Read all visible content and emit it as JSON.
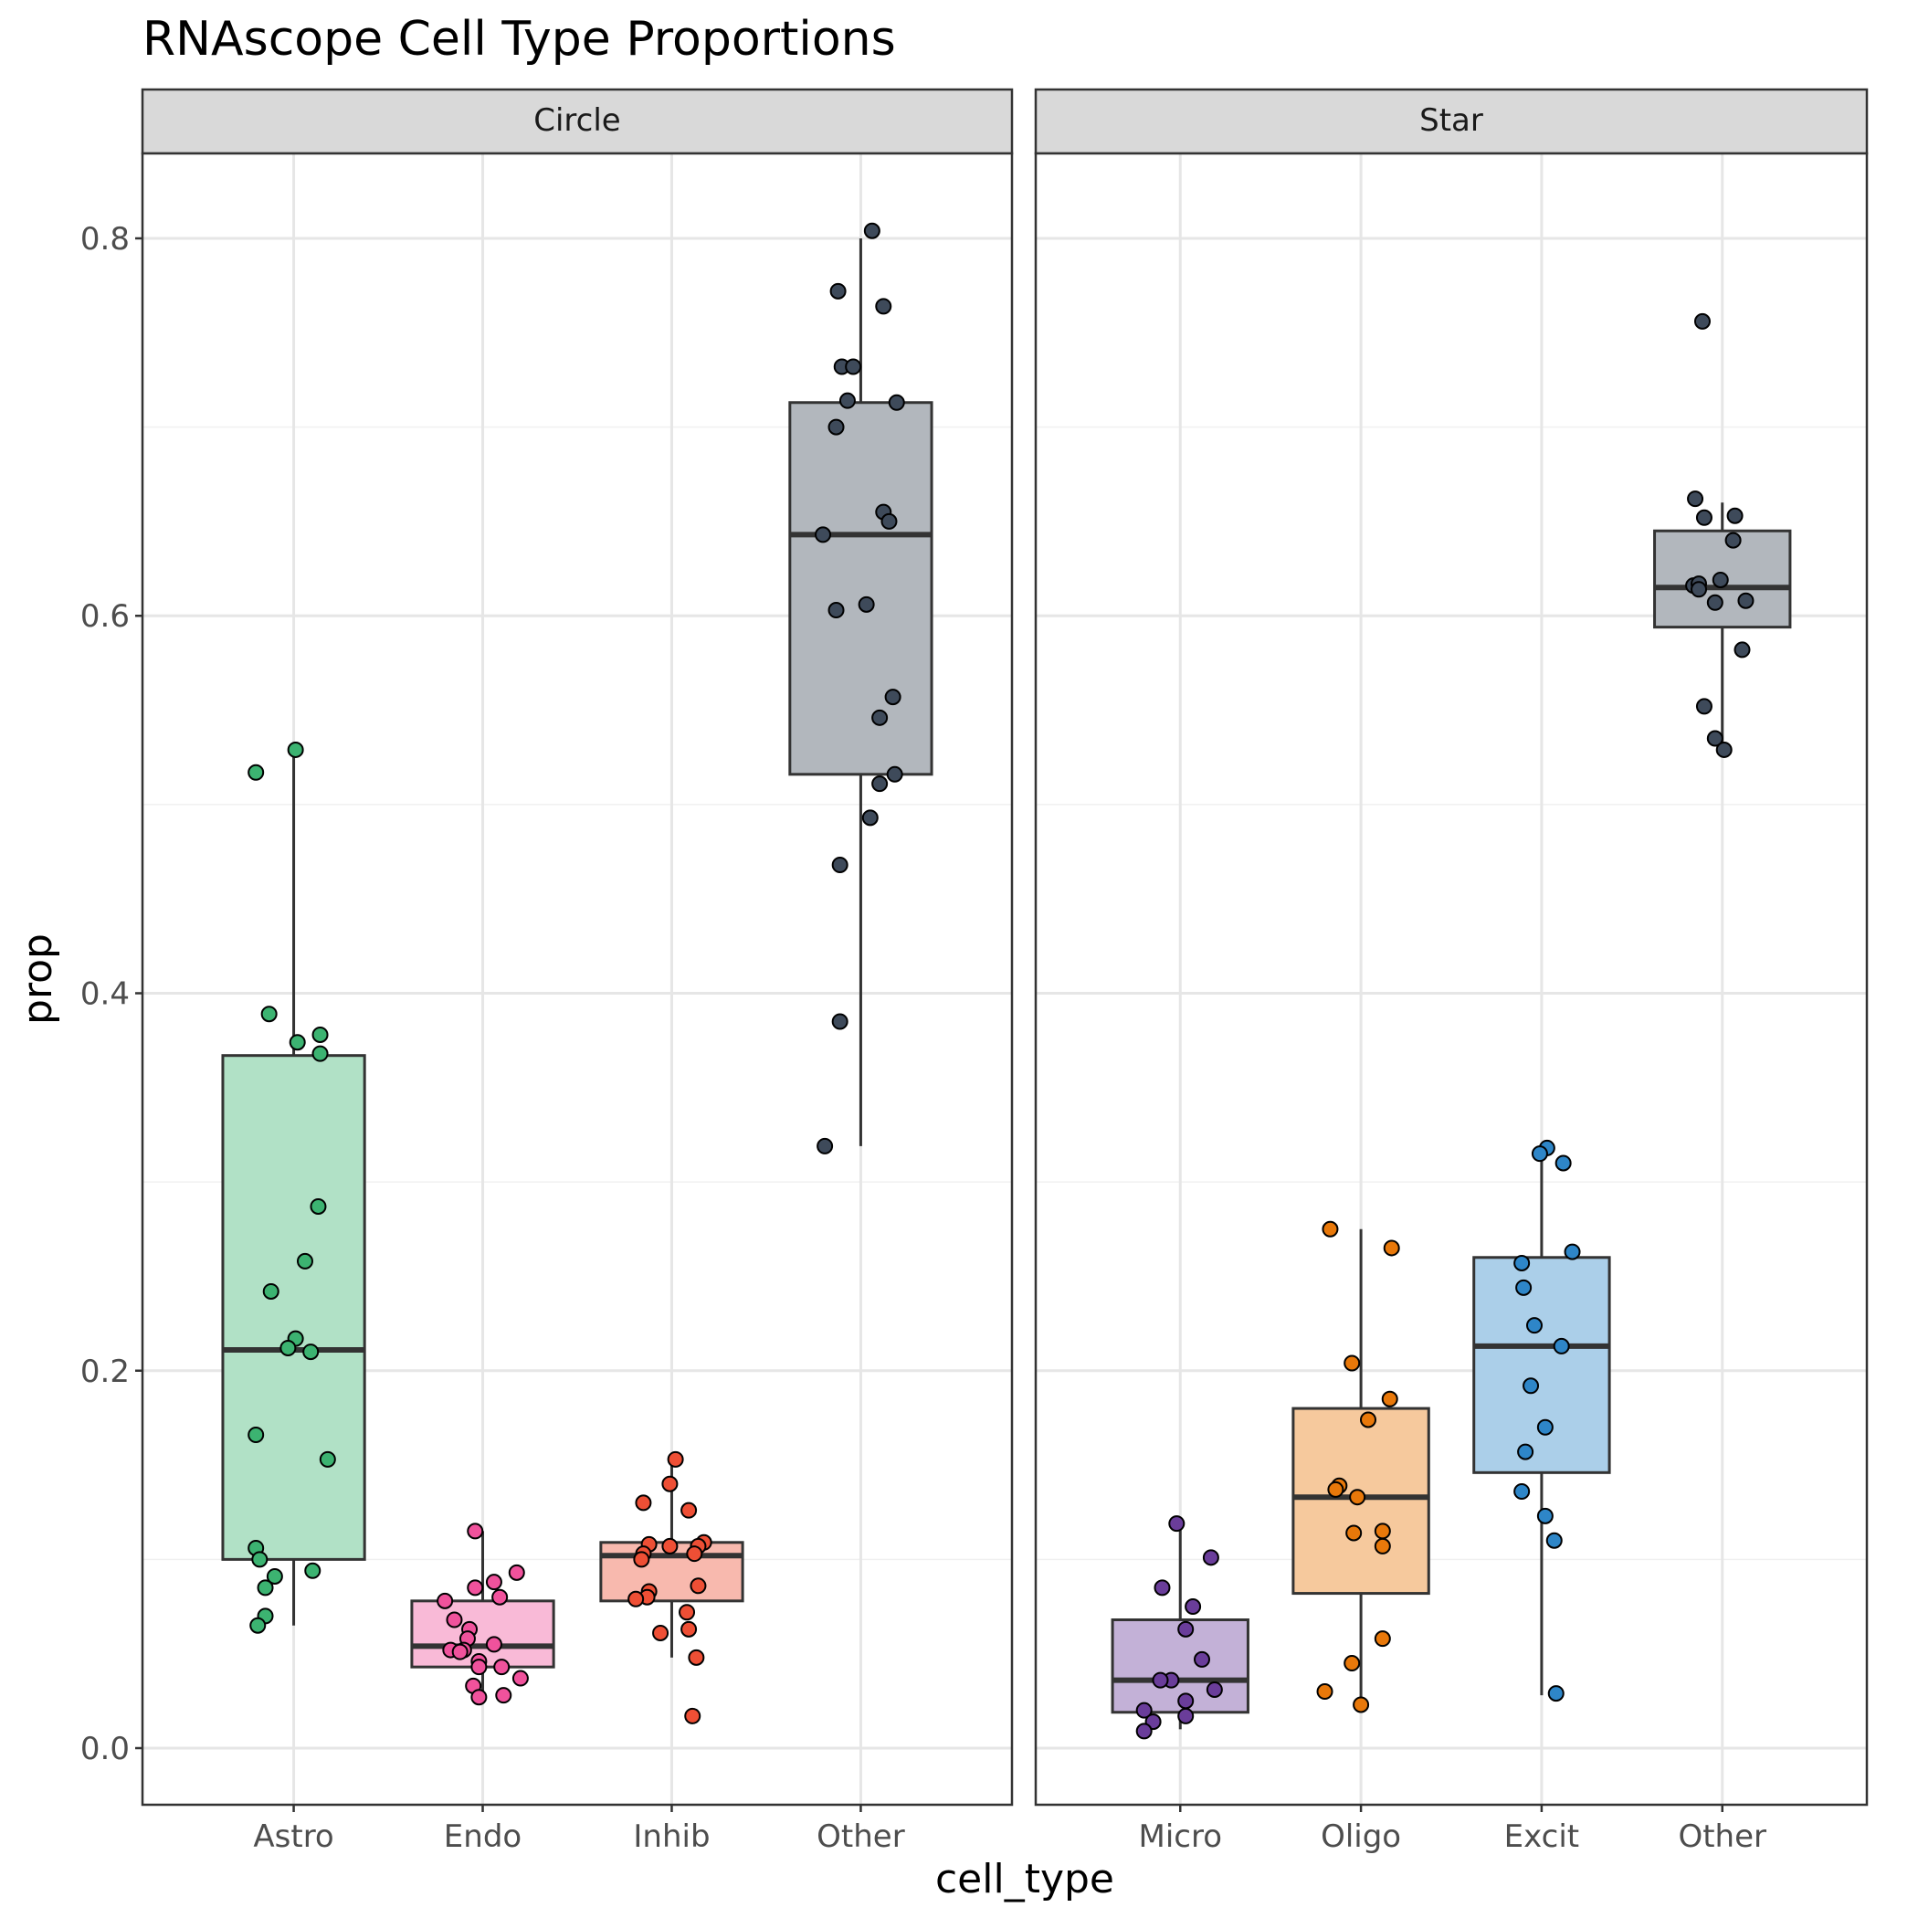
{
  "chart_data": {
    "type": "boxplot",
    "title": "RNAscope Cell Type Proportions",
    "xlabel": "cell_type",
    "ylabel": "prop",
    "ylim": [
      -0.03,
      0.845
    ],
    "yticks": [
      0.0,
      0.2,
      0.4,
      0.6,
      0.8
    ],
    "ytick_labels": [
      "0.0",
      "0.2",
      "0.4",
      "0.6",
      "0.8"
    ],
    "grid": true,
    "facets": [
      {
        "name": "Circle",
        "categories": [
          {
            "label": "Astro",
            "color": "#3cb371",
            "box": {
              "whisker_low": 0.065,
              "q1": 0.1,
              "median": 0.211,
              "q3": 0.367,
              "whisker_high": 0.529
            },
            "points": [
              [
                -0.2,
                0.517
              ],
              [
                0.01,
                0.529
              ],
              [
                -0.13,
                0.389
              ],
              [
                0.02,
                0.374
              ],
              [
                0.14,
                0.378
              ],
              [
                0.14,
                0.368
              ],
              [
                0.13,
                0.287
              ],
              [
                0.06,
                0.258
              ],
              [
                -0.12,
                0.242
              ],
              [
                0.01,
                0.217
              ],
              [
                -0.03,
                0.212
              ],
              [
                0.09,
                0.21
              ],
              [
                -0.2,
                0.166
              ],
              [
                0.18,
                0.153
              ],
              [
                -0.2,
                0.106
              ],
              [
                -0.18,
                0.1
              ],
              [
                -0.1,
                0.091
              ],
              [
                -0.15,
                0.085
              ],
              [
                -0.15,
                0.07
              ],
              [
                -0.19,
                0.065
              ],
              [
                0.1,
                0.094
              ]
            ]
          },
          {
            "label": "Endo",
            "color": "#f0529c",
            "box": {
              "whisker_low": 0.027,
              "q1": 0.043,
              "median": 0.054,
              "q3": 0.078,
              "whisker_high": 0.115
            },
            "points": [
              [
                -0.04,
                0.115
              ],
              [
                0.18,
                0.093
              ],
              [
                0.06,
                0.088
              ],
              [
                -0.04,
                0.085
              ],
              [
                0.09,
                0.08
              ],
              [
                -0.2,
                0.078
              ],
              [
                -0.15,
                0.068
              ],
              [
                -0.07,
                0.063
              ],
              [
                -0.08,
                0.058
              ],
              [
                0.06,
                0.055
              ],
              [
                -0.1,
                0.052
              ],
              [
                -0.17,
                0.052
              ],
              [
                -0.12,
                0.051
              ],
              [
                -0.02,
                0.046
              ],
              [
                0.1,
                0.043
              ],
              [
                -0.02,
                0.043
              ],
              [
                0.2,
                0.037
              ],
              [
                -0.05,
                0.033
              ],
              [
                0.11,
                0.028
              ],
              [
                -0.02,
                0.027
              ]
            ]
          },
          {
            "label": "Inhib",
            "color": "#ee4f35",
            "box": {
              "whisker_low": 0.048,
              "q1": 0.078,
              "median": 0.102,
              "q3": 0.109,
              "whisker_high": 0.153
            },
            "points": [
              [
                0.02,
                0.153
              ],
              [
                -0.01,
                0.14
              ],
              [
                -0.15,
                0.13
              ],
              [
                0.09,
                0.126
              ],
              [
                0.17,
                0.109
              ],
              [
                -0.12,
                0.108
              ],
              [
                -0.01,
                0.107
              ],
              [
                0.14,
                0.107
              ],
              [
                -0.15,
                0.103
              ],
              [
                0.12,
                0.103
              ],
              [
                -0.16,
                0.1
              ],
              [
                0.14,
                0.086
              ],
              [
                -0.12,
                0.083
              ],
              [
                -0.13,
                0.08
              ],
              [
                -0.19,
                0.079
              ],
              [
                0.08,
                0.072
              ],
              [
                0.09,
                0.063
              ],
              [
                -0.06,
                0.061
              ],
              [
                0.13,
                0.048
              ],
              [
                0.11,
                0.017
              ]
            ]
          },
          {
            "label": "Other",
            "color": "#3e4a5a",
            "box": {
              "whisker_low": 0.319,
              "q1": 0.516,
              "median": 0.643,
              "q3": 0.713,
              "whisker_high": 0.8
            },
            "points": [
              [
                0.06,
                0.804
              ],
              [
                -0.12,
                0.772
              ],
              [
                0.12,
                0.764
              ],
              [
                -0.1,
                0.732
              ],
              [
                -0.04,
                0.732
              ],
              [
                -0.07,
                0.714
              ],
              [
                0.19,
                0.713
              ],
              [
                -0.13,
                0.7
              ],
              [
                0.12,
                0.655
              ],
              [
                0.15,
                0.65
              ],
              [
                -0.2,
                0.643
              ],
              [
                -0.13,
                0.603
              ],
              [
                0.03,
                0.606
              ],
              [
                0.17,
                0.557
              ],
              [
                0.1,
                0.546
              ],
              [
                0.18,
                0.516
              ],
              [
                0.1,
                0.511
              ],
              [
                0.05,
                0.493
              ],
              [
                -0.11,
                0.468
              ],
              [
                -0.11,
                0.385
              ],
              [
                -0.19,
                0.319
              ]
            ]
          }
        ]
      },
      {
        "name": "Star",
        "categories": [
          {
            "label": "Micro",
            "color": "#6a3d9a",
            "box": {
              "whisker_low": 0.01,
              "q1": 0.019,
              "median": 0.036,
              "q3": 0.068,
              "whisker_high": 0.12
            },
            "points": [
              [
                -0.02,
                0.119
              ],
              [
                0.17,
                0.101
              ],
              [
                -0.1,
                0.085
              ],
              [
                0.07,
                0.075
              ],
              [
                0.03,
                0.063
              ],
              [
                0.12,
                0.047
              ],
              [
                -0.05,
                0.036
              ],
              [
                -0.11,
                0.036
              ],
              [
                0.19,
                0.031
              ],
              [
                0.03,
                0.025
              ],
              [
                -0.2,
                0.02
              ],
              [
                0.03,
                0.017
              ],
              [
                -0.15,
                0.014
              ],
              [
                -0.2,
                0.009
              ]
            ]
          },
          {
            "label": "Oligo",
            "color": "#e8780a",
            "box": {
              "whisker_low": 0.022,
              "q1": 0.082,
              "median": 0.133,
              "q3": 0.18,
              "whisker_high": 0.275
            },
            "points": [
              [
                -0.17,
                0.275
              ],
              [
                0.17,
                0.265
              ],
              [
                -0.05,
                0.204
              ],
              [
                0.16,
                0.185
              ],
              [
                0.04,
                0.174
              ],
              [
                -0.12,
                0.139
              ],
              [
                -0.14,
                0.137
              ],
              [
                -0.02,
                0.133
              ],
              [
                -0.04,
                0.114
              ],
              [
                0.12,
                0.115
              ],
              [
                0.12,
                0.107
              ],
              [
                0.12,
                0.058
              ],
              [
                -0.05,
                0.045
              ],
              [
                -0.2,
                0.03
              ],
              [
                0.0,
                0.023
              ]
            ]
          },
          {
            "label": "Excit",
            "color": "#2e86c8",
            "box": {
              "whisker_low": 0.028,
              "q1": 0.146,
              "median": 0.213,
              "q3": 0.26,
              "whisker_high": 0.32
            },
            "points": [
              [
                0.03,
                0.318
              ],
              [
                -0.01,
                0.315
              ],
              [
                0.12,
                0.31
              ],
              [
                0.17,
                0.263
              ],
              [
                -0.11,
                0.257
              ],
              [
                -0.1,
                0.244
              ],
              [
                -0.04,
                0.224
              ],
              [
                0.11,
                0.213
              ],
              [
                -0.06,
                0.192
              ],
              [
                0.02,
                0.17
              ],
              [
                -0.09,
                0.157
              ],
              [
                -0.11,
                0.136
              ],
              [
                0.02,
                0.123
              ],
              [
                0.07,
                0.11
              ],
              [
                0.08,
                0.029
              ]
            ]
          },
          {
            "label": "Other",
            "color": "#3e4a5a",
            "box": {
              "whisker_low": 0.532,
              "q1": 0.594,
              "median": 0.615,
              "q3": 0.645,
              "whisker_high": 0.66
            },
            "points": [
              [
                -0.11,
                0.756
              ],
              [
                -0.15,
                0.662
              ],
              [
                -0.1,
                0.652
              ],
              [
                0.07,
                0.653
              ],
              [
                0.06,
                0.64
              ],
              [
                -0.01,
                0.619
              ],
              [
                -0.16,
                0.616
              ],
              [
                -0.13,
                0.617
              ],
              [
                -0.13,
                0.614
              ],
              [
                0.13,
                0.608
              ],
              [
                -0.04,
                0.607
              ],
              [
                0.11,
                0.582
              ],
              [
                -0.1,
                0.552
              ],
              [
                -0.04,
                0.535
              ],
              [
                0.01,
                0.529
              ]
            ]
          }
        ]
      }
    ]
  }
}
